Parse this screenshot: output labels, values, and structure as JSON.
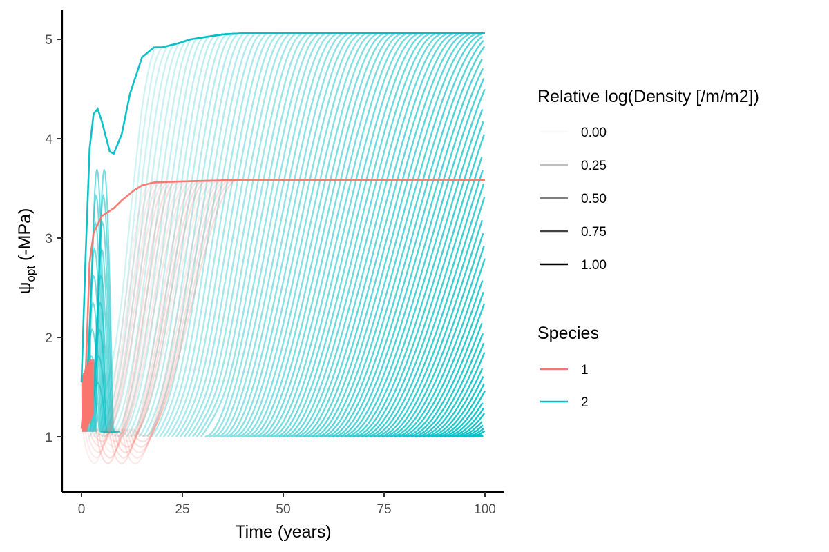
{
  "chart_data": {
    "type": "line",
    "xlabel": "Time (years)",
    "ylabel": {
      "symbol": "ψ",
      "subscript": "opt",
      "rest": " (-MPa)"
    },
    "xlim": [
      -5,
      105
    ],
    "ylim": [
      0.45,
      5.3
    ],
    "x_ticks": [
      0,
      25,
      50,
      75,
      100
    ],
    "y_ticks": [
      1,
      2,
      3,
      4,
      5
    ],
    "x_tick_labels": [
      "0",
      "25",
      "50",
      "75",
      "100"
    ],
    "y_tick_labels": [
      "1",
      "2",
      "3",
      "4",
      "5"
    ],
    "grid": false,
    "legend_position": "right",
    "series": [
      {
        "name": "1",
        "color": "#F8766D",
        "envelope": [
          [
            0,
            1.08
          ],
          [
            1,
            1.6
          ],
          [
            2,
            2.75
          ],
          [
            3,
            3.05
          ],
          [
            5,
            3.22
          ],
          [
            8,
            3.3
          ],
          [
            10,
            3.38
          ],
          [
            13,
            3.48
          ],
          [
            15,
            3.53
          ],
          [
            18,
            3.56
          ],
          [
            25,
            3.57
          ],
          [
            40,
            3.585
          ],
          [
            100,
            3.585
          ]
        ],
        "description": "cohort trajectories (red)"
      },
      {
        "name": "2",
        "color": "#00BFC4",
        "envelope": [
          [
            0,
            1.55
          ],
          [
            1,
            2.8
          ],
          [
            2,
            3.9
          ],
          [
            3,
            4.25
          ],
          [
            4,
            4.3
          ],
          [
            5,
            4.18
          ],
          [
            7,
            3.87
          ],
          [
            8,
            3.85
          ],
          [
            10,
            4.05
          ],
          [
            12,
            4.45
          ],
          [
            15,
            4.82
          ],
          [
            18,
            4.92
          ],
          [
            20,
            4.92
          ],
          [
            24,
            4.96
          ],
          [
            27,
            5.0
          ],
          [
            35,
            5.05
          ],
          [
            40,
            5.06
          ],
          [
            100,
            5.06
          ]
        ],
        "description": "cohort trajectories (teal)"
      }
    ]
  },
  "legend": {
    "density": {
      "title": "Relative log(Density [/m/m2])",
      "items": [
        {
          "label": "0.00",
          "alpha": 0.0
        },
        {
          "label": "0.25",
          "alpha": 0.25
        },
        {
          "label": "0.50",
          "alpha": 0.5
        },
        {
          "label": "0.75",
          "alpha": 0.75
        },
        {
          "label": "1.00",
          "alpha": 1.0
        }
      ]
    },
    "species": {
      "title": "Species",
      "items": [
        {
          "label": "1",
          "color": "#F8766D"
        },
        {
          "label": "2",
          "color": "#00BFC4"
        }
      ]
    }
  }
}
